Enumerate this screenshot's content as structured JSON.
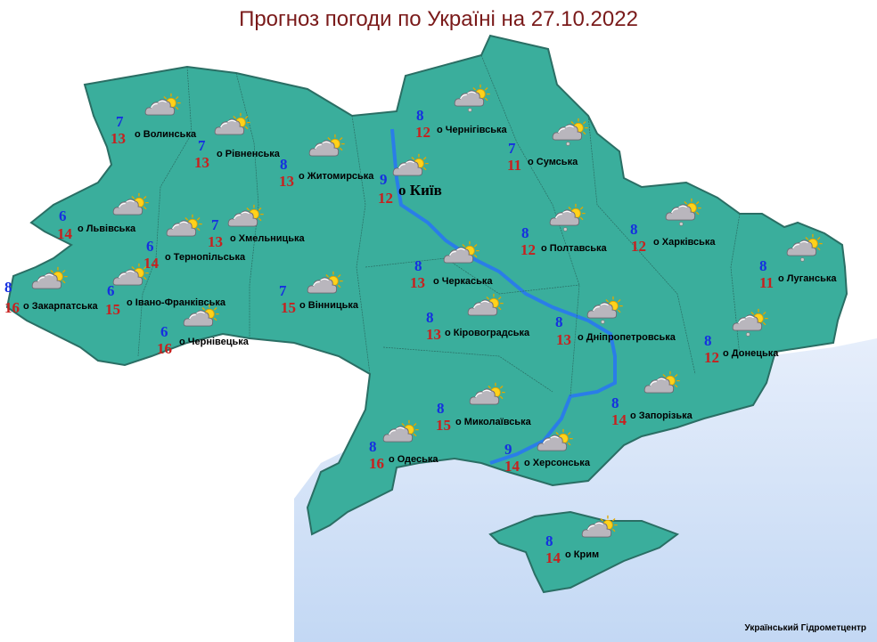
{
  "title": "Прогноз погоди по Україні на 27.10.2022",
  "footer": "Український Гідрометцентр",
  "colors": {
    "land": "#3aae9c",
    "sea": "#cfe0f7",
    "river": "#2a7de8",
    "min_temp": "#1530e0",
    "max_temp": "#c8201e",
    "title": "#7a1a1a"
  },
  "regions": [
    {
      "name": "о Волинська",
      "min": "7",
      "max": "13",
      "icon": "cloud-sun-icon"
    },
    {
      "name": "о Рівненська",
      "min": "7",
      "max": "13",
      "icon": "cloud-sun-icon"
    },
    {
      "name": "о Житомирська",
      "min": "8",
      "max": "13",
      "icon": "cloud-sun-icon"
    },
    {
      "name": "о Київ",
      "min": "9",
      "max": "12",
      "icon": "cloud-sun-icon"
    },
    {
      "name": "о Чернігівська",
      "min": "8",
      "max": "12",
      "icon": "cloud-sun-rain-icon"
    },
    {
      "name": "о Сумська",
      "min": "7",
      "max": "11",
      "icon": "cloud-sun-rain-icon"
    },
    {
      "name": "о Львівська",
      "min": "6",
      "max": "14",
      "icon": "cloud-sun-icon"
    },
    {
      "name": "о Хмельницька",
      "min": "7",
      "max": "13",
      "icon": "cloud-sun-icon"
    },
    {
      "name": "о Тернопільська",
      "min": "6",
      "max": "14",
      "icon": "cloud-sun-icon"
    },
    {
      "name": "о Закарпатська",
      "min": "8",
      "max": "16",
      "icon": "cloud-sun-icon"
    },
    {
      "name": "о Івано-Франківська",
      "min": "6",
      "max": "15",
      "icon": "cloud-sun-icon"
    },
    {
      "name": "о Чернівецька",
      "min": "6",
      "max": "16",
      "icon": "cloud-sun-icon"
    },
    {
      "name": "о Вінницька",
      "min": "7",
      "max": "15",
      "icon": "cloud-sun-icon"
    },
    {
      "name": "о Черкаська",
      "min": "8",
      "max": "13",
      "icon": "cloud-sun-icon"
    },
    {
      "name": "о Полтавська",
      "min": "8",
      "max": "12",
      "icon": "cloud-sun-rain-icon"
    },
    {
      "name": "о Харківська",
      "min": "8",
      "max": "12",
      "icon": "cloud-sun-rain-icon"
    },
    {
      "name": "о Луганська",
      "min": "8",
      "max": "11",
      "icon": "cloud-sun-rain-icon"
    },
    {
      "name": "о Кіровоградська",
      "min": "8",
      "max": "13",
      "icon": "cloud-sun-icon"
    },
    {
      "name": "о Дніпропетровська",
      "min": "8",
      "max": "13",
      "icon": "cloud-sun-rain-icon"
    },
    {
      "name": "о Донецька",
      "min": "8",
      "max": "12",
      "icon": "cloud-sun-rain-icon"
    },
    {
      "name": "о Запорізька",
      "min": "8",
      "max": "14",
      "icon": "cloud-sun-icon"
    },
    {
      "name": "о Миколаївська",
      "min": "8",
      "max": "15",
      "icon": "cloud-sun-icon"
    },
    {
      "name": "о Одеська",
      "min": "8",
      "max": "16",
      "icon": "cloud-sun-icon"
    },
    {
      "name": "о Херсонська",
      "min": "9",
      "max": "14",
      "icon": "cloud-sun-icon"
    },
    {
      "name": "о Крим",
      "min": "8",
      "max": "14",
      "icon": "cloud-sun-icon"
    }
  ]
}
